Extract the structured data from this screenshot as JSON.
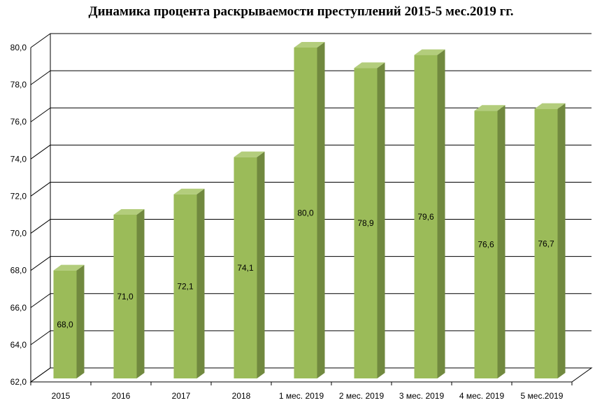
{
  "chart_data": {
    "type": "bar",
    "title": "Динамика процента раскрываемости преступлений 2015-5 мес.2019 гг.",
    "categories": [
      "2015",
      "2016",
      "2017",
      "2018",
      "1 мес. 2019",
      "2 мес. 2019",
      "3 мес. 2019",
      "4 мес. 2019",
      "5 мес.2019"
    ],
    "values": [
      68.0,
      71.0,
      72.1,
      74.1,
      80.0,
      78.9,
      79.6,
      76.6,
      76.7
    ],
    "value_labels": [
      "68,0",
      "71,0",
      "72,1",
      "74,1",
      "80,0",
      "78,9",
      "79,6",
      "76,6",
      "76,7"
    ],
    "y_ticks": [
      "62,0",
      "64,0",
      "66,0",
      "68,0",
      "70,0",
      "72,0",
      "74,0",
      "76,0",
      "78,0",
      "80,0"
    ],
    "ylim": [
      62,
      80
    ],
    "xlabel": "",
    "ylabel": "",
    "grid": true,
    "legend": "none",
    "colors": {
      "bar_front": "#9BBB59",
      "bar_side": "#71893F",
      "bar_top": "#B3CD7C",
      "grid": "#000000",
      "wall": "#ffffff"
    }
  }
}
